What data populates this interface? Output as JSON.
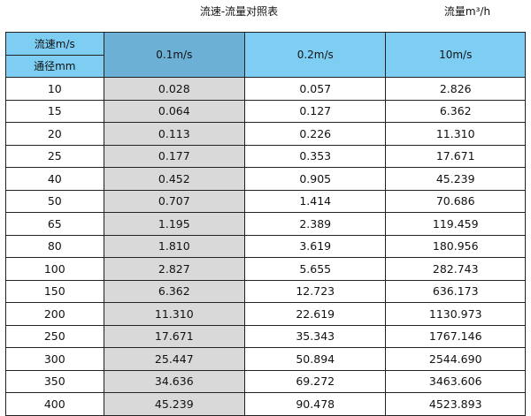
{
  "title": "流速-流量对照表",
  "unit_label": "流量m³/h",
  "colors": {
    "header": "#7ecef4",
    "header_selected": "#6cb0d6",
    "highlight_column": "#d9d9d9"
  },
  "table": {
    "corner_top": "流速m/s",
    "corner_bottom": "通径mm",
    "columns": [
      "0.1m/s",
      "0.2m/s",
      "10m/s"
    ],
    "rows": [
      [
        "10",
        "0.028",
        "0.057",
        "2.826"
      ],
      [
        "15",
        "0.064",
        "0.127",
        "6.362"
      ],
      [
        "20",
        "0.113",
        "0.226",
        "11.310"
      ],
      [
        "25",
        "0.177",
        "0.353",
        "17.671"
      ],
      [
        "40",
        "0.452",
        "0.905",
        "45.239"
      ],
      [
        "50",
        "0.707",
        "1.414",
        "70.686"
      ],
      [
        "65",
        "1.195",
        "2.389",
        "119.459"
      ],
      [
        "80",
        "1.810",
        "3.619",
        "180.956"
      ],
      [
        "100",
        "2.827",
        "5.655",
        "282.743"
      ],
      [
        "150",
        "6.362",
        "12.723",
        "636.173"
      ],
      [
        "200",
        "11.310",
        "22.619",
        "1130.973"
      ],
      [
        "250",
        "17.671",
        "35.343",
        "1767.146"
      ],
      [
        "300",
        "25.447",
        "50.894",
        "2544.690"
      ],
      [
        "350",
        "34.636",
        "69.272",
        "3463.606"
      ],
      [
        "400",
        "45.239",
        "90.478",
        "4523.893"
      ]
    ]
  }
}
